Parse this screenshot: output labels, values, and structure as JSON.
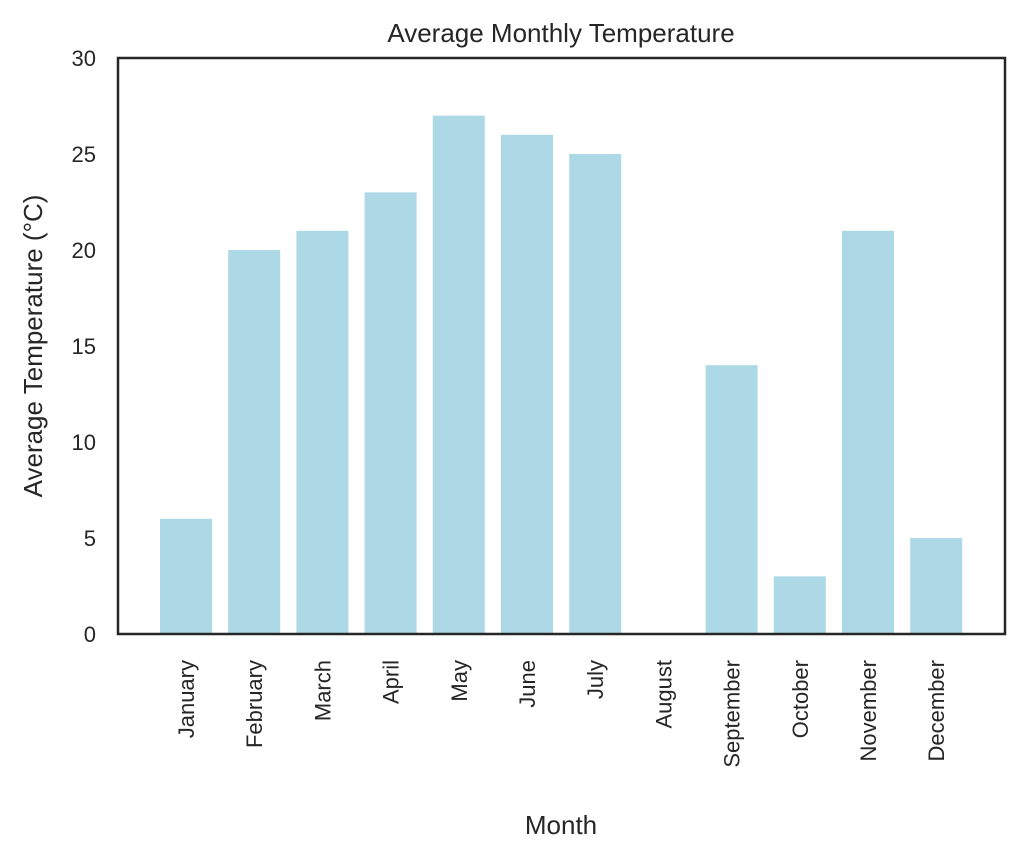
{
  "chart_data": {
    "type": "bar",
    "title": "Average Monthly Temperature",
    "xlabel": "Month",
    "ylabel": "Average Temperature (°C)",
    "categories": [
      "January",
      "February",
      "March",
      "April",
      "May",
      "June",
      "July",
      "August",
      "September",
      "October",
      "November",
      "December"
    ],
    "values": [
      6,
      20,
      21,
      23,
      27,
      26,
      25,
      0,
      14,
      3,
      21,
      5
    ],
    "ylim": [
      0,
      30
    ],
    "yticks": [
      0,
      5,
      10,
      15,
      20,
      25,
      30
    ],
    "grid": false,
    "legend": "none",
    "colors": {
      "bar": "#add8e6",
      "axes": "#262626",
      "text": "#262626"
    }
  }
}
